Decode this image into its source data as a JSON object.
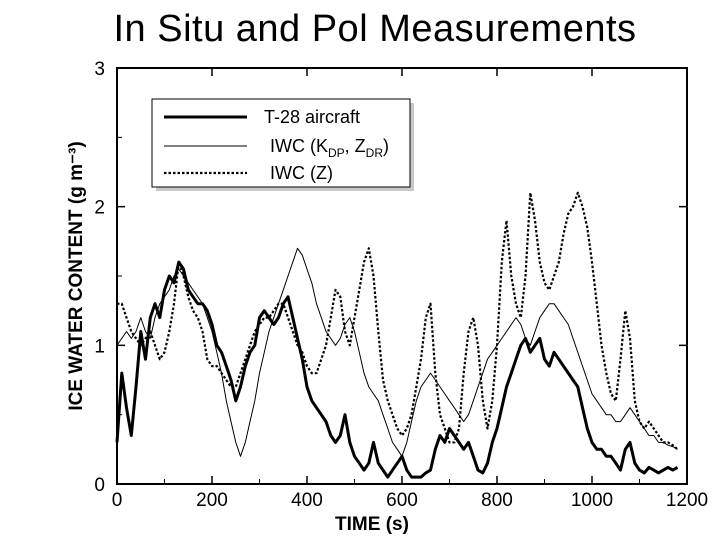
{
  "page": {
    "title": "In Situ and Pol Measurements"
  },
  "chart_data": {
    "type": "line",
    "title": "In Situ and Pol Measurements",
    "xlabel": "TIME (s)",
    "ylabel": "ICE WATER CONTENT (g m⁻³)",
    "xlim": [
      0,
      1200
    ],
    "ylim": [
      0,
      3
    ],
    "xticks": [
      0,
      200,
      400,
      600,
      800,
      1000,
      1200
    ],
    "yticks": [
      0,
      1,
      2,
      3
    ],
    "legend_position": "top-left",
    "series": [
      {
        "name": "T-28 aircraft",
        "style": "thick-solid",
        "x": [
          0,
          10,
          20,
          30,
          40,
          50,
          60,
          70,
          80,
          90,
          100,
          110,
          120,
          130,
          140,
          150,
          160,
          170,
          180,
          190,
          200,
          210,
          220,
          230,
          240,
          250,
          260,
          270,
          280,
          290,
          300,
          310,
          320,
          330,
          340,
          350,
          360,
          370,
          380,
          390,
          400,
          410,
          420,
          430,
          440,
          450,
          460,
          470,
          480,
          490,
          500,
          510,
          520,
          530,
          540,
          550,
          560,
          570,
          580,
          590,
          600,
          610,
          620,
          630,
          640,
          650,
          660,
          670,
          680,
          690,
          700,
          710,
          720,
          730,
          740,
          750,
          760,
          770,
          780,
          790,
          800,
          810,
          820,
          830,
          840,
          850,
          860,
          870,
          880,
          890,
          900,
          910,
          920,
          930,
          940,
          950,
          960,
          970,
          980,
          990,
          1000,
          1010,
          1020,
          1030,
          1040,
          1050,
          1060,
          1070,
          1080,
          1090,
          1100,
          1110,
          1120,
          1130,
          1140,
          1150,
          1160,
          1170,
          1180
        ],
        "values": [
          0.3,
          0.8,
          0.55,
          0.35,
          0.7,
          1.1,
          0.9,
          1.2,
          1.3,
          1.2,
          1.4,
          1.5,
          1.45,
          1.6,
          1.55,
          1.4,
          1.35,
          1.3,
          1.3,
          1.25,
          1.15,
          1.0,
          0.95,
          0.85,
          0.75,
          0.6,
          0.7,
          0.85,
          0.95,
          1.0,
          1.2,
          1.25,
          1.2,
          1.15,
          1.2,
          1.3,
          1.35,
          1.2,
          1.05,
          0.9,
          0.7,
          0.6,
          0.55,
          0.5,
          0.45,
          0.35,
          0.3,
          0.35,
          0.5,
          0.3,
          0.2,
          0.15,
          0.1,
          0.15,
          0.3,
          0.15,
          0.1,
          0.05,
          0.1,
          0.15,
          0.2,
          0.1,
          0.05,
          0.05,
          0.05,
          0.08,
          0.1,
          0.25,
          0.35,
          0.3,
          0.4,
          0.35,
          0.3,
          0.25,
          0.3,
          0.2,
          0.1,
          0.08,
          0.15,
          0.3,
          0.4,
          0.55,
          0.7,
          0.8,
          0.9,
          1.0,
          1.05,
          0.95,
          1.0,
          1.05,
          0.9,
          0.85,
          0.95,
          0.9,
          0.85,
          0.8,
          0.75,
          0.7,
          0.55,
          0.4,
          0.3,
          0.25,
          0.25,
          0.2,
          0.2,
          0.15,
          0.1,
          0.25,
          0.3,
          0.15,
          0.1,
          0.08,
          0.12,
          0.1,
          0.08,
          0.1,
          0.12,
          0.1,
          0.12
        ]
      },
      {
        "name": "IWC (K_DP, Z_DR)",
        "style": "thin-solid",
        "x": [
          0,
          10,
          20,
          30,
          40,
          50,
          60,
          70,
          80,
          90,
          100,
          110,
          120,
          130,
          140,
          150,
          160,
          170,
          180,
          190,
          200,
          210,
          220,
          230,
          240,
          250,
          260,
          270,
          280,
          290,
          300,
          310,
          320,
          330,
          340,
          350,
          360,
          370,
          380,
          390,
          400,
          410,
          420,
          430,
          440,
          450,
          460,
          470,
          480,
          490,
          500,
          510,
          520,
          530,
          540,
          550,
          560,
          570,
          580,
          590,
          600,
          610,
          620,
          630,
          640,
          650,
          660,
          670,
          680,
          690,
          700,
          710,
          720,
          730,
          740,
          750,
          760,
          770,
          780,
          790,
          800,
          810,
          820,
          830,
          840,
          850,
          860,
          870,
          880,
          890,
          900,
          910,
          920,
          930,
          940,
          950,
          960,
          970,
          980,
          990,
          1000,
          1010,
          1020,
          1030,
          1040,
          1050,
          1060,
          1070,
          1080,
          1090,
          1100,
          1110,
          1120,
          1130,
          1140,
          1150,
          1160,
          1170,
          1180
        ],
        "values": [
          1.0,
          1.05,
          1.1,
          1.05,
          1.1,
          1.2,
          1.1,
          1.05,
          1.2,
          1.3,
          1.35,
          1.4,
          1.5,
          1.55,
          1.5,
          1.45,
          1.4,
          1.35,
          1.3,
          1.2,
          1.1,
          0.95,
          0.8,
          0.6,
          0.45,
          0.3,
          0.2,
          0.3,
          0.45,
          0.6,
          0.8,
          0.95,
          1.1,
          1.2,
          1.3,
          1.4,
          1.5,
          1.6,
          1.7,
          1.65,
          1.55,
          1.45,
          1.3,
          1.2,
          1.1,
          1.05,
          1.0,
          1.05,
          1.15,
          1.2,
          1.1,
          0.95,
          0.8,
          0.7,
          0.65,
          0.6,
          0.5,
          0.4,
          0.3,
          0.25,
          0.2,
          0.3,
          0.45,
          0.6,
          0.7,
          0.75,
          0.8,
          0.75,
          0.7,
          0.65,
          0.6,
          0.55,
          0.5,
          0.45,
          0.5,
          0.6,
          0.7,
          0.8,
          0.9,
          0.95,
          1.0,
          1.05,
          1.1,
          1.15,
          1.2,
          1.15,
          1.05,
          1.0,
          1.1,
          1.2,
          1.25,
          1.3,
          1.3,
          1.25,
          1.2,
          1.15,
          1.05,
          0.95,
          0.85,
          0.75,
          0.65,
          0.6,
          0.55,
          0.5,
          0.5,
          0.45,
          0.45,
          0.5,
          0.55,
          0.5,
          0.45,
          0.4,
          0.35,
          0.35,
          0.3,
          0.3,
          0.28,
          0.27,
          0.25
        ]
      },
      {
        "name": "IWC (Z)",
        "style": "dotted",
        "x": [
          0,
          10,
          20,
          30,
          40,
          50,
          60,
          70,
          80,
          90,
          100,
          110,
          120,
          130,
          140,
          150,
          160,
          170,
          180,
          190,
          200,
          210,
          220,
          230,
          240,
          250,
          260,
          270,
          280,
          290,
          300,
          310,
          320,
          330,
          340,
          350,
          360,
          370,
          380,
          390,
          400,
          410,
          420,
          430,
          440,
          450,
          460,
          470,
          480,
          490,
          500,
          510,
          520,
          530,
          540,
          550,
          560,
          570,
          580,
          590,
          600,
          610,
          620,
          630,
          640,
          650,
          660,
          670,
          680,
          690,
          700,
          710,
          720,
          730,
          740,
          750,
          760,
          770,
          780,
          790,
          800,
          810,
          820,
          830,
          840,
          850,
          860,
          870,
          880,
          890,
          900,
          910,
          920,
          930,
          940,
          950,
          960,
          970,
          980,
          990,
          1000,
          1010,
          1020,
          1030,
          1040,
          1050,
          1060,
          1070,
          1080,
          1090,
          1100,
          1110,
          1120,
          1130,
          1140,
          1150,
          1160,
          1170,
          1180
        ],
        "values": [
          1.3,
          1.3,
          1.2,
          1.1,
          1.05,
          1.0,
          1.05,
          1.1,
          1.0,
          0.9,
          0.95,
          1.1,
          1.3,
          1.6,
          1.5,
          1.35,
          1.25,
          1.2,
          1.1,
          0.9,
          0.85,
          0.85,
          0.8,
          0.75,
          0.7,
          0.7,
          0.8,
          0.9,
          1.0,
          1.1,
          1.15,
          1.2,
          1.2,
          1.25,
          1.3,
          1.3,
          1.2,
          1.1,
          1.0,
          0.95,
          0.85,
          0.8,
          0.8,
          0.9,
          1.0,
          1.2,
          1.4,
          1.35,
          1.1,
          1.0,
          1.2,
          1.4,
          1.6,
          1.7,
          1.5,
          1.1,
          0.75,
          0.6,
          0.5,
          0.4,
          0.35,
          0.4,
          0.5,
          0.7,
          0.9,
          1.2,
          1.3,
          0.8,
          0.5,
          0.4,
          0.3,
          0.3,
          0.4,
          0.8,
          1.1,
          1.2,
          1.0,
          0.6,
          0.4,
          0.6,
          1.0,
          1.6,
          1.9,
          1.5,
          1.3,
          1.2,
          1.5,
          2.1,
          1.9,
          1.6,
          1.45,
          1.4,
          1.5,
          1.6,
          1.8,
          1.95,
          2.0,
          2.1,
          2.0,
          1.85,
          1.6,
          1.3,
          1.0,
          0.8,
          0.65,
          0.6,
          0.9,
          1.25,
          1.05,
          0.6,
          0.45,
          0.4,
          0.45,
          0.4,
          0.35,
          0.3,
          0.3,
          0.28,
          0.25
        ]
      }
    ]
  }
}
